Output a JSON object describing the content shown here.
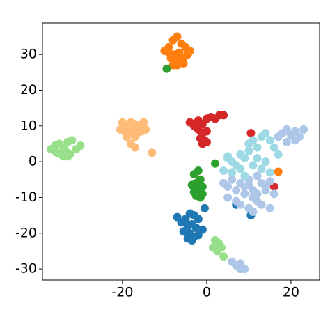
{
  "chart_data": {
    "type": "scatter",
    "xlim": [
      -39,
      26.8
    ],
    "ylim": [
      -33.1,
      38.8
    ],
    "xticks": [
      -20,
      0,
      20
    ],
    "yticks": [
      -30,
      -20,
      -10,
      0,
      10,
      20,
      30
    ],
    "series": [
      {
        "color": "#ff7f0e",
        "x": [
          -8,
          -7,
          -6,
          -9,
          -10,
          -5,
          -4,
          -7.5,
          -6.5,
          -8.5,
          -5.5,
          -9,
          -7,
          -6,
          -4.5,
          -8,
          -7,
          -5.5,
          17
        ],
        "y": [
          34,
          35,
          33,
          32,
          31,
          32,
          31,
          30,
          30.5,
          29,
          29,
          30.5,
          28,
          28.5,
          30,
          27,
          27,
          27.5,
          -2.8
        ]
      },
      {
        "color": "#2ca02c",
        "x": [
          -9.5,
          -2,
          -3,
          -1.5,
          -2.5,
          -1,
          -3.5,
          -2,
          -1,
          -3,
          -1.5,
          -2.5,
          2
        ],
        "y": [
          26,
          -2.5,
          -3.5,
          -5,
          -6,
          -7,
          -6.5,
          -8,
          -9,
          -8.5,
          -10,
          -9.5,
          -0.5
        ]
      },
      {
        "color": "#ffbb78",
        "x": [
          -20,
          -19,
          -18,
          -17,
          -16,
          -15,
          -14.5,
          -20.5,
          -19.5,
          -18.5,
          -17.5,
          -16.5,
          -15.5,
          -19,
          -17,
          -18,
          -17,
          -13
        ],
        "y": [
          11,
          10,
          11,
          10.5,
          10,
          11,
          9,
          9,
          8.5,
          8,
          9.5,
          8,
          8.5,
          7,
          7,
          5,
          4,
          2.5
        ]
      },
      {
        "color": "#98df8a",
        "x": [
          -37,
          -36,
          -35,
          -34,
          -33,
          -32,
          -31,
          -35.5,
          -34.5,
          -33.5,
          -32.5,
          -30,
          -36,
          -34,
          -33,
          2,
          3,
          1.5,
          2.5,
          3.5,
          4,
          2.5
        ],
        "y": [
          3.5,
          4.5,
          5,
          4,
          5.5,
          6,
          3.5,
          2.5,
          2,
          3,
          2,
          4.5,
          3,
          1.5,
          1.5,
          -22,
          -23,
          -24,
          -25,
          -24,
          -26.5,
          -22.5
        ]
      },
      {
        "color": "#d62728",
        "x": [
          -4,
          -3,
          -2,
          -1,
          0,
          1,
          2,
          3,
          4,
          -2,
          -1,
          0,
          -1.5,
          -0.5,
          -1,
          0,
          10.5,
          16
        ],
        "y": [
          11,
          10,
          11.5,
          10.5,
          12,
          12.5,
          12,
          13,
          13,
          9,
          8,
          8.5,
          6.5,
          6,
          5,
          5.5,
          8,
          -7
        ]
      },
      {
        "color": "#1f77b4",
        "x": [
          -4,
          -3,
          -2,
          -5,
          -6,
          -4.5,
          -3.5,
          -2.5,
          -1,
          -5.5,
          -4,
          -3,
          -2,
          -4.5,
          -3.5,
          -7,
          -0.5,
          7,
          10.5
        ],
        "y": [
          -14.5,
          -15,
          -16,
          -16,
          -17,
          -18,
          -17.5,
          -18.5,
          -19,
          -19.5,
          -20,
          -21,
          -20.5,
          -21.5,
          -22,
          -15.5,
          -13,
          -12,
          -15
        ]
      },
      {
        "color": "#aec7e8",
        "x": [
          4,
          5,
          6,
          7,
          8,
          9,
          10,
          11,
          12,
          13,
          14,
          15,
          16,
          5,
          7,
          9,
          11,
          13,
          15,
          8,
          10,
          12,
          14,
          10,
          11,
          12,
          17,
          18,
          19,
          20,
          21,
          22,
          23,
          19,
          21,
          6,
          7,
          8,
          9,
          8
        ],
        "y": [
          -6,
          -7,
          -5,
          -8,
          -6,
          -7,
          -5,
          -8,
          -9,
          -6,
          -7,
          -5.5,
          -9,
          -10,
          -11,
          -9,
          -10,
          -12,
          -13,
          -12,
          -13,
          -11,
          -8,
          -6.5,
          -14,
          -4,
          7,
          8,
          9,
          7.5,
          8.5,
          7,
          9,
          5.5,
          6,
          -28,
          -29,
          -28.5,
          -30,
          -30
        ]
      },
      {
        "color": "#9edae5",
        "x": [
          5,
          6,
          7,
          8,
          9,
          10,
          11,
          12,
          13,
          14,
          15,
          16,
          17,
          10,
          12,
          14,
          11,
          13,
          15,
          9,
          4,
          6,
          8,
          5
        ],
        "y": [
          1.5,
          0,
          -1,
          2,
          1,
          5,
          6,
          4,
          7,
          8,
          6,
          4,
          2,
          3,
          1,
          0,
          -1,
          -2,
          -3,
          -4,
          -2.5,
          -3,
          -2,
          1
        ]
      }
    ]
  }
}
